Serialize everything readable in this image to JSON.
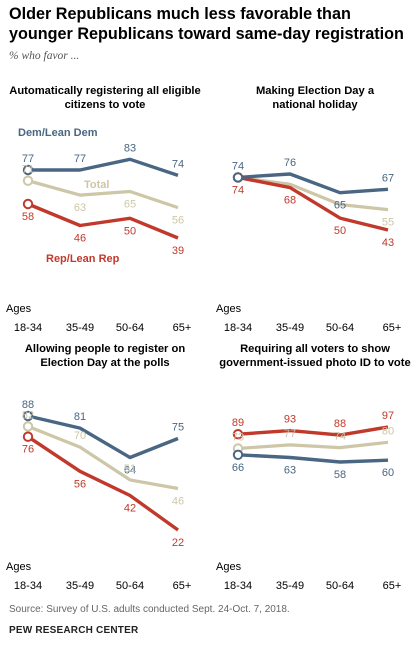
{
  "title": "Older Republicans much less favorable than younger Republicans toward same-day registration",
  "subtitle": "% who favor ...",
  "source": "Source: Survey of U.S. adults conducted Sept. 24-Oct. 7, 2018.",
  "brand": "PEW RESEARCH CENTER",
  "colors": {
    "dem": "#496683",
    "rep": "#c0392b",
    "total": "#cdc6a7"
  },
  "chart_data": [
    {
      "type": "line",
      "title": "Automatically registering all eligible citizens to vote",
      "title_lines": [
        "Automatically registering all eligible",
        "citizens to vote"
      ],
      "xlabel": "Ages",
      "categories": [
        "18-34",
        "35-49",
        "50-64",
        "65+"
      ],
      "series": [
        {
          "name": "Dem/Lean Dem",
          "key": "dem",
          "values": [
            77,
            77,
            83,
            74
          ]
        },
        {
          "name": "Total",
          "key": "total",
          "values": [
            71,
            63,
            65,
            56
          ]
        },
        {
          "name": "Rep/Lean Rep",
          "key": "rep",
          "values": [
            58,
            46,
            50,
            39
          ]
        }
      ]
    },
    {
      "type": "line",
      "title": "Making Election Day a national holiday",
      "title_lines": [
        "Making Election Day a",
        "national holiday"
      ],
      "xlabel": "Ages",
      "categories": [
        "18-34",
        "35-49",
        "50-64",
        "65+"
      ],
      "series": [
        {
          "key": "dem",
          "values": [
            74,
            76,
            65,
            67
          ]
        },
        {
          "key": "total",
          "values": [
            74,
            70,
            58,
            55
          ]
        },
        {
          "key": "rep",
          "values": [
            74,
            68,
            50,
            43
          ]
        }
      ]
    },
    {
      "type": "line",
      "title": "Allowing people to register on Election Day at the polls",
      "title_lines": [
        "Allowing people to register on",
        "Election Day at the polls"
      ],
      "xlabel": "Ages",
      "categories": [
        "18-34",
        "35-49",
        "50-64",
        "65+"
      ],
      "series": [
        {
          "key": "dem",
          "values": [
            88,
            81,
            64,
            75
          ]
        },
        {
          "key": "total",
          "values": [
            82,
            70,
            51,
            46
          ]
        },
        {
          "key": "rep",
          "values": [
            76,
            56,
            42,
            22
          ]
        }
      ]
    },
    {
      "type": "line",
      "title": "Requiring all voters to show government-issued photo ID to vote",
      "title_lines": [
        "Requiring all voters to show",
        "government-issued photo ID to vote"
      ],
      "xlabel": "Ages",
      "categories": [
        "18-34",
        "35-49",
        "50-64",
        "65+"
      ],
      "series": [
        {
          "key": "rep",
          "values": [
            89,
            93,
            88,
            97
          ]
        },
        {
          "key": "total",
          "values": [
            73,
            77,
            74,
            80
          ]
        },
        {
          "key": "dem",
          "values": [
            66,
            63,
            58,
            60
          ]
        }
      ]
    }
  ]
}
